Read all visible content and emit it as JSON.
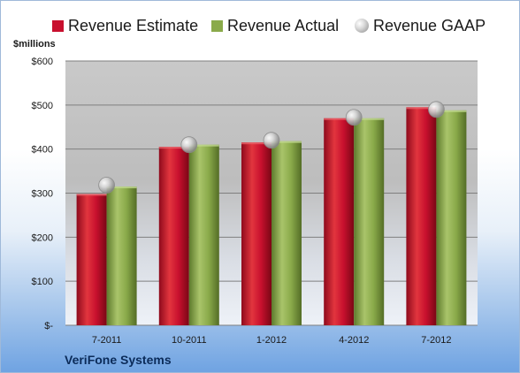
{
  "chart_data": {
    "type": "bar",
    "title": "",
    "xlabel": "",
    "ylabel": "",
    "unit_label": "$millions",
    "footer_label": "VeriFone Systems",
    "categories": [
      "7-2011",
      "10-2011",
      "1-2012",
      "4-2012",
      "7-2012"
    ],
    "series": [
      {
        "name": "Revenue Estimate",
        "kind": "bar",
        "color": "#c8102e",
        "values": [
          298,
          405,
          415,
          470,
          495
        ]
      },
      {
        "name": "Revenue Actual",
        "kind": "bar",
        "color": "#8aaa4a",
        "values": [
          315,
          410,
          418,
          470,
          488
        ]
      },
      {
        "name": "Revenue GAAP",
        "kind": "marker",
        "color": "#c0c0c0",
        "values": [
          318,
          410,
          420,
          472,
          490
        ]
      }
    ],
    "ylim": [
      0,
      600
    ],
    "y_ticks": [
      0,
      100,
      200,
      300,
      400,
      500,
      600
    ],
    "y_tick_labels": [
      "$-",
      "$100",
      "$200",
      "$300",
      "$400",
      "$500",
      "$600"
    ],
    "grid": true,
    "legend_position": "top"
  }
}
